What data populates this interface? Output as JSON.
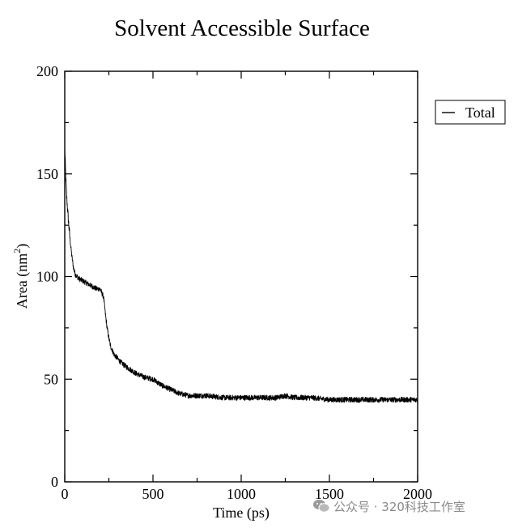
{
  "chart_data": {
    "type": "line",
    "title": "Solvent Accessible Surface",
    "xlabel": "Time (ps)",
    "ylabel_main": "Area (nm",
    "ylabel_sup": "2",
    "ylabel_close": ")",
    "xlim": [
      0,
      2000
    ],
    "ylim": [
      0,
      200
    ],
    "x_ticks": [
      0,
      500,
      1000,
      1500,
      2000
    ],
    "x_tick_labels": [
      "0",
      "500",
      "1000",
      "1500",
      "2000"
    ],
    "y_ticks": [
      0,
      50,
      100,
      150,
      200
    ],
    "y_tick_labels": [
      "0",
      "50",
      "100",
      "150",
      "200"
    ],
    "grid": false,
    "legend_position": "right",
    "series": [
      {
        "name": "Total",
        "color": "#000000",
        "x": [
          0,
          5,
          10,
          20,
          30,
          40,
          50,
          60,
          70,
          80,
          100,
          120,
          140,
          160,
          180,
          200,
          210,
          220,
          230,
          240,
          250,
          260,
          280,
          300,
          320,
          350,
          400,
          450,
          500,
          550,
          600,
          650,
          700,
          800,
          900,
          1000,
          1100,
          1200,
          1250,
          1300,
          1400,
          1500,
          1600,
          1700,
          1800,
          1900,
          2000
        ],
        "y": [
          163,
          150,
          140,
          128,
          118,
          110,
          104,
          101,
          100,
          99,
          98,
          97,
          96,
          95,
          94,
          94,
          92,
          90,
          82,
          75,
          70,
          66,
          62,
          60,
          58,
          56,
          53,
          51,
          50,
          47,
          45,
          43,
          42,
          42,
          41,
          41,
          41,
          41,
          42,
          41,
          41,
          40,
          40,
          40,
          40,
          40,
          40
        ]
      }
    ]
  },
  "watermark": {
    "icon": "wechat-icon",
    "text": "公众号 · 320科技工作室"
  }
}
